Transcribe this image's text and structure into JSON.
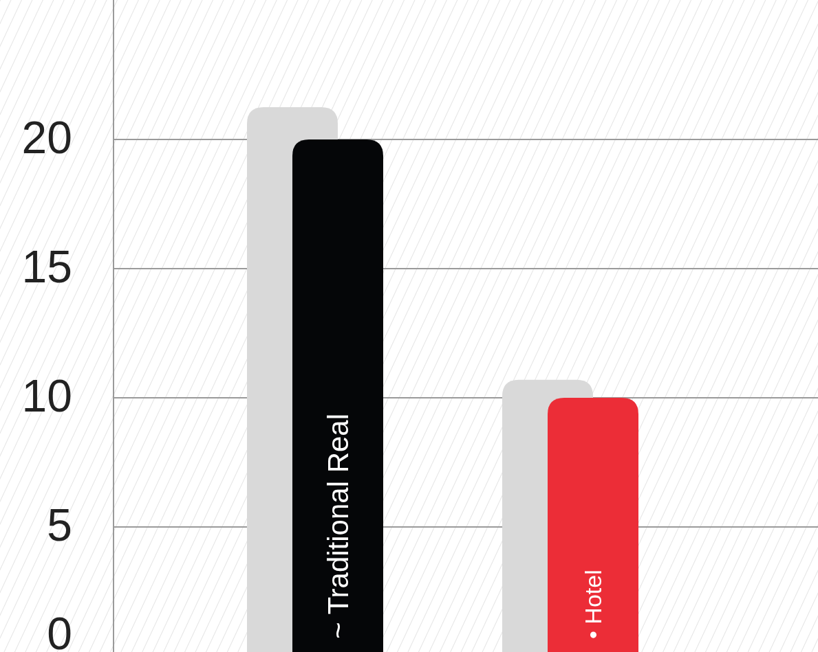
{
  "chart_data": {
    "type": "bar",
    "categories": [
      "~ Traditional Real",
      "• Hotel"
    ],
    "series": [
      {
        "color": "#d9d9d9",
        "values": [
          21.25,
          10.7
        ]
      },
      {
        "colors": [
          "#050608",
          "#ec2d37"
        ],
        "values": [
          20,
          10
        ]
      }
    ],
    "ylim": [
      0,
      25.4
    ],
    "yticks": [
      0,
      5,
      10,
      15,
      20
    ],
    "grid": "y"
  }
}
